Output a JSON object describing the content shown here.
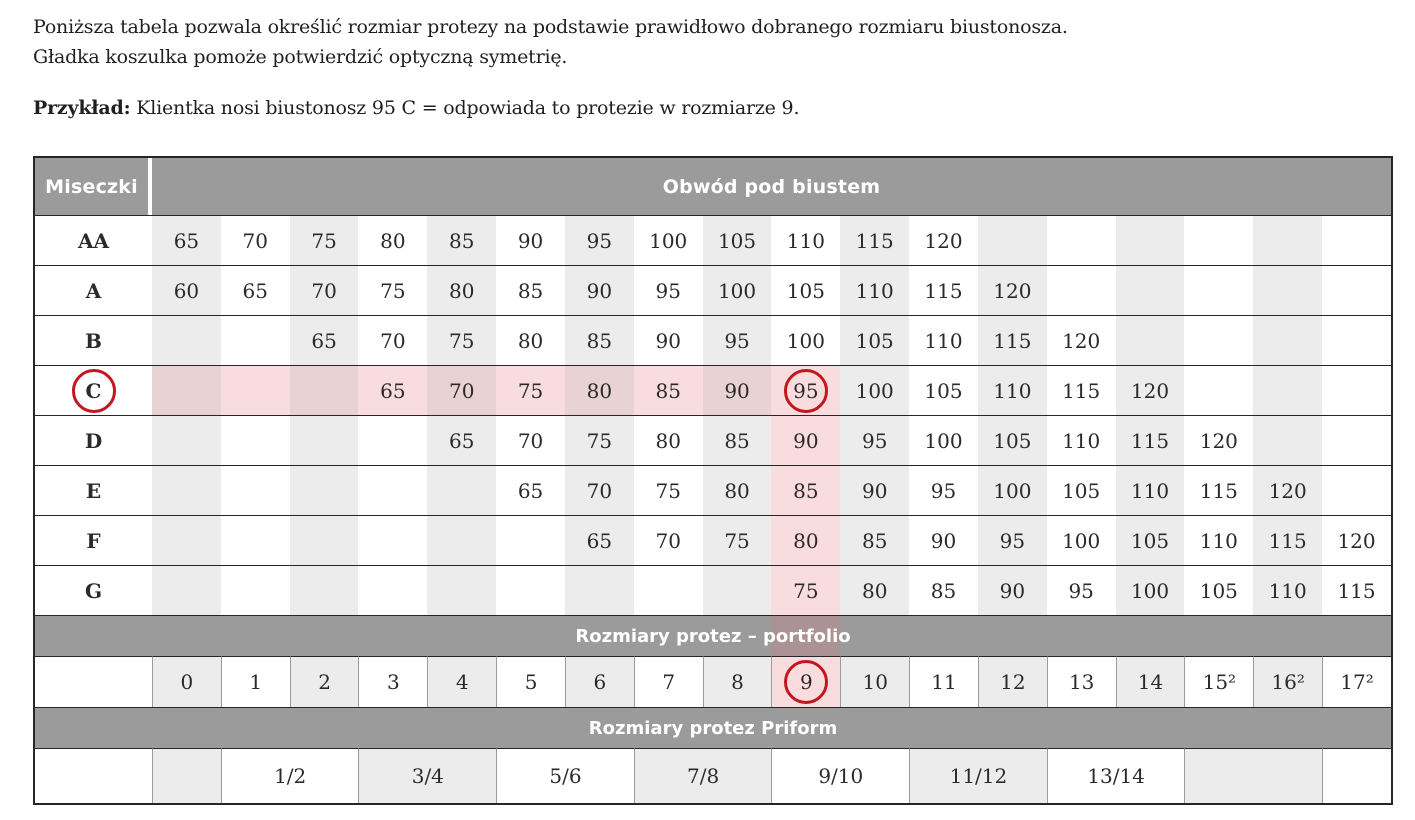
{
  "intro": {
    "line1": "Poniższa tabela pozwala określić rozmiar protezy na podstawie prawidłowo dobranego rozmiaru biustonosza.",
    "line2": "Gładka koszulka pomoże potwierdzić optyczną symetrię.",
    "example_label": "Przykład:",
    "example_text": " Klientka nosi biustonosz 95 C = odpowiada to protezie w rozmiarze 9."
  },
  "table": {
    "corner_header": "Miseczki",
    "band_header": "Obwód pod biustem",
    "highlight_column": 9,
    "column_highlight_from_row": 3,
    "cup_rows": [
      {
        "label": "AA",
        "cells": [
          "65",
          "70",
          "75",
          "80",
          "85",
          "90",
          "95",
          "100",
          "105",
          "110",
          "115",
          "120",
          "",
          "",
          "",
          "",
          "",
          ""
        ]
      },
      {
        "label": "A",
        "cells": [
          "60",
          "65",
          "70",
          "75",
          "80",
          "85",
          "90",
          "95",
          "100",
          "105",
          "110",
          "115",
          "120",
          "",
          "",
          "",
          "",
          ""
        ]
      },
      {
        "label": "B",
        "cells": [
          "",
          "",
          "65",
          "70",
          "75",
          "80",
          "85",
          "90",
          "95",
          "100",
          "105",
          "110",
          "115",
          "120",
          "",
          "",
          "",
          ""
        ]
      },
      {
        "label": "C",
        "cells": [
          "",
          "",
          "",
          "65",
          "70",
          "75",
          "80",
          "85",
          "90",
          "95",
          "100",
          "105",
          "110",
          "115",
          "120",
          "",
          "",
          ""
        ],
        "circled_label": true,
        "circled_cell": 9,
        "row_highlight_through": 9
      },
      {
        "label": "D",
        "cells": [
          "",
          "",
          "",
          "",
          "65",
          "70",
          "75",
          "80",
          "85",
          "90",
          "95",
          "100",
          "105",
          "110",
          "115",
          "120",
          "",
          ""
        ]
      },
      {
        "label": "E",
        "cells": [
          "",
          "",
          "",
          "",
          "",
          "65",
          "70",
          "75",
          "80",
          "85",
          "90",
          "95",
          "100",
          "105",
          "110",
          "115",
          "120",
          ""
        ]
      },
      {
        "label": "F",
        "cells": [
          "",
          "",
          "",
          "",
          "",
          "",
          "65",
          "70",
          "75",
          "80",
          "85",
          "90",
          "95",
          "100",
          "105",
          "110",
          "115",
          "120"
        ]
      },
      {
        "label": "G",
        "cells": [
          "",
          "",
          "",
          "",
          "",
          "",
          "",
          "",
          "",
          "75",
          "80",
          "85",
          "90",
          "95",
          "100",
          "105",
          "110",
          "115"
        ]
      }
    ],
    "portfolio_header": "Rozmiary protez – portfolio",
    "portfolio_cells": [
      "0",
      "1",
      "2",
      "3",
      "4",
      "5",
      "6",
      "7",
      "8",
      "9",
      "10",
      "11",
      "12",
      "13",
      "14",
      "15²",
      "16²",
      "17²"
    ],
    "portfolio_circled": 9,
    "priform_header": "Rozmiary protez Priform",
    "priform_cells": [
      {
        "text": "",
        "span": 1
      },
      {
        "text": "1/2",
        "span": 2
      },
      {
        "text": "3/4",
        "span": 2
      },
      {
        "text": "5/6",
        "span": 2
      },
      {
        "text": "7/8",
        "span": 2
      },
      {
        "text": "9/10",
        "span": 2
      },
      {
        "text": "11/12",
        "span": 2
      },
      {
        "text": "13/14",
        "span": 2
      },
      {
        "text": "",
        "span": 2
      },
      {
        "text": "",
        "span": 1
      }
    ]
  },
  "colors": {
    "header_gray": "#9b9b9b",
    "stripe_gray": "#ececec",
    "pink_light": "#f9dcdd",
    "pink_dusty": "#e9d2d3",
    "pink_on_header": "#ab9295",
    "circle_red": "#c4161f",
    "text_dark": "#2b2a29"
  }
}
